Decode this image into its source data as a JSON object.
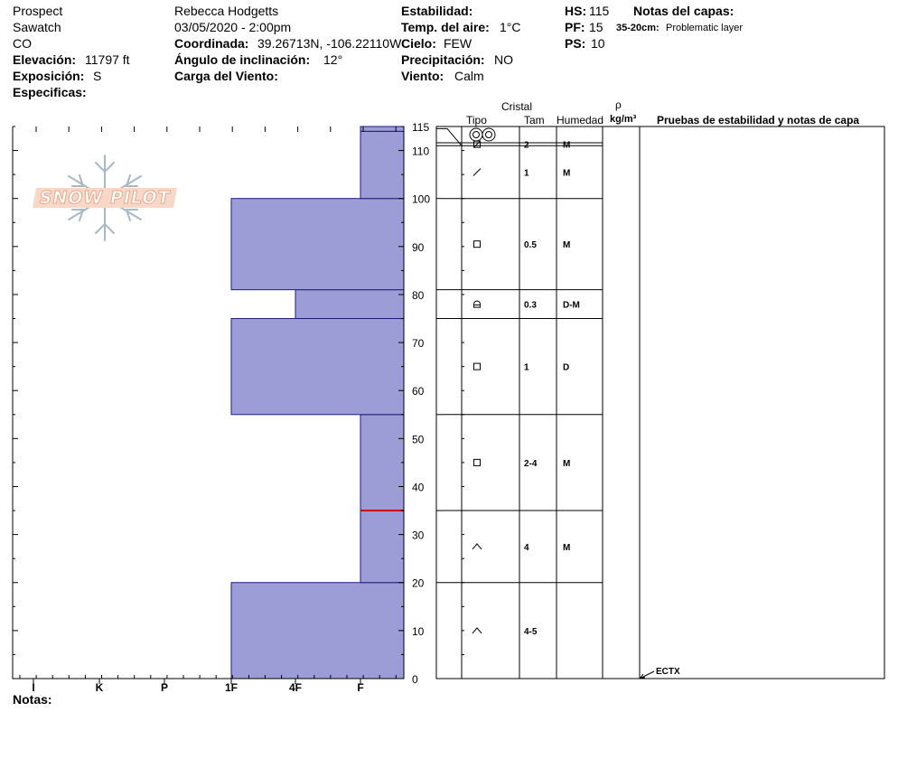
{
  "header": {
    "location": "Prospect",
    "range": "Sawatch",
    "state": "CO",
    "elevation_label": "Elevación:",
    "elevation_value": "11797 ft",
    "aspect_label": "Exposición:",
    "aspect_value": "S",
    "specifics_label": "Especificas:",
    "observer": "Rebecca Hodgetts",
    "datetime": "03/05/2020 - 2:00pm",
    "coord_label": "Coordinada:",
    "coord_value": "39.26713N, -106.22110W",
    "incline_label": "Ángulo de inclinación:",
    "incline_value": "12°",
    "wind_load_label": "Carga del Viento:",
    "stability_label": "Estabilidad:",
    "air_temp_label": "Temp. del aire:",
    "air_temp_value": "1°C",
    "sky_label": "Cielo:",
    "sky_value": "FEW",
    "precip_label": "Precipitación:",
    "precip_value": "NO",
    "wind_label": "Viento:",
    "wind_value": "Calm",
    "hs_label": "HS:",
    "hs_value": "115",
    "pf_label": "PF:",
    "pf_value": "15",
    "ps_label": "PS:",
    "ps_value": "10",
    "layer_notes_label": "Notas del capas:",
    "layer_note_range": "35-20cm:",
    "layer_note_text": "Problematic layer",
    "notes_label": "Notas:"
  },
  "logo": {
    "text": "SNOW PILOT"
  },
  "columns": {
    "crystal": "Cristal",
    "type": "Tipo",
    "size": "Tam",
    "moisture": "Humedad",
    "density_symbol": "ρ",
    "density_unit": "kg/m³",
    "tests": "Pruebas de estabilidad y notas de capa"
  },
  "chart_data": {
    "type": "bar",
    "orientation": "horizontal",
    "x_axis": {
      "categories": [
        "I",
        "K",
        "P",
        "1F",
        "4F",
        "F"
      ]
    },
    "y_axis": {
      "min": 0,
      "max": 115,
      "ticks": [
        0,
        10,
        20,
        30,
        40,
        50,
        60,
        70,
        80,
        90,
        100,
        110,
        115
      ],
      "unit": "cm"
    },
    "hardness_profile": [
      {
        "bottom": 0,
        "top": 20,
        "hardness": "1F"
      },
      {
        "bottom": 20,
        "top": 55,
        "hardness": "F"
      },
      {
        "bottom": 55,
        "top": 75,
        "hardness": "1F"
      },
      {
        "bottom": 75,
        "top": 81,
        "hardness": "4F"
      },
      {
        "bottom": 81,
        "top": 100,
        "hardness": "1F"
      },
      {
        "bottom": 100,
        "top": 114,
        "hardness": "F"
      },
      {
        "bottom": 114,
        "top": 115,
        "hardness": "F"
      }
    ],
    "problem_layer_height": 35,
    "layers": [
      {
        "bottom": 0,
        "top": 20,
        "grain": "depth-hoar",
        "size": "4-5",
        "moisture": ""
      },
      {
        "bottom": 20,
        "top": 35,
        "grain": "depth-hoar",
        "size": "4",
        "moisture": "M"
      },
      {
        "bottom": 35,
        "top": 55,
        "grain": "faceted",
        "size": "2-4",
        "moisture": "M"
      },
      {
        "bottom": 55,
        "top": 75,
        "grain": "faceted",
        "size": "1",
        "moisture": "D"
      },
      {
        "bottom": 75,
        "top": 81,
        "grain": "faceted-rounding",
        "size": "0.3",
        "moisture": "D-M"
      },
      {
        "bottom": 81,
        "top": 100,
        "grain": "faceted",
        "size": "0.5",
        "moisture": "M"
      },
      {
        "bottom": 100,
        "top": 111,
        "grain": "decomposed",
        "size": "1",
        "moisture": "M"
      },
      {
        "bottom": 111,
        "top": 115,
        "grain": "crust-facet",
        "size": "2",
        "moisture": "M"
      }
    ],
    "surface_symbol": "surface-hoar-pair",
    "tests": [
      {
        "height": 0,
        "label": "ECTX"
      }
    ],
    "colors": {
      "fill": "#9c9cd6",
      "stroke": "#1c1c80",
      "problem": "#cc0000"
    }
  }
}
